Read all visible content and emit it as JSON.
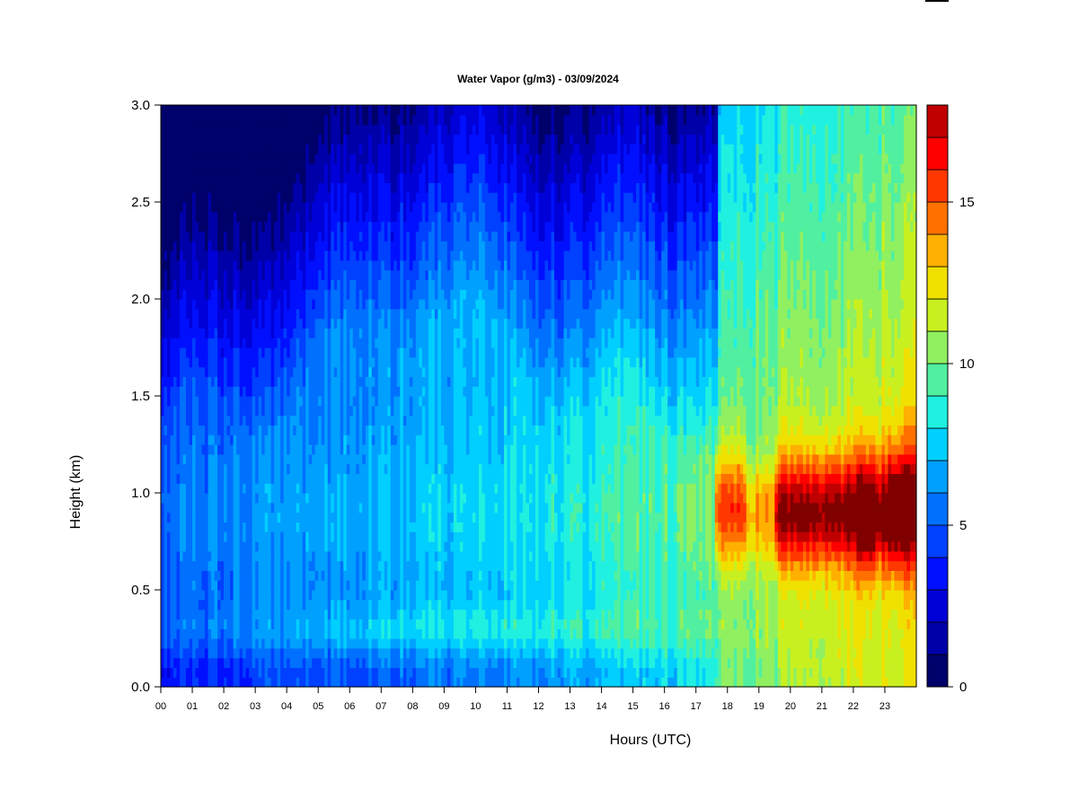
{
  "chart_data": {
    "type": "heatmap",
    "title": "Water Vapor (g/m3) - 03/09/2024",
    "xlabel": "Hours (UTC)",
    "ylabel": "Height (km)",
    "xlim": [
      0,
      24
    ],
    "ylim": [
      0.0,
      3.0
    ],
    "x_ticks": [
      "00",
      "01",
      "02",
      "03",
      "04",
      "05",
      "06",
      "07",
      "08",
      "09",
      "10",
      "11",
      "12",
      "13",
      "14",
      "15",
      "16",
      "17",
      "18",
      "19",
      "20",
      "21",
      "22",
      "23"
    ],
    "y_ticks": [
      "0.0",
      "0.5",
      "1.0",
      "1.5",
      "2.0",
      "2.5",
      "3.0"
    ],
    "colorbar": {
      "range": [
        0,
        18
      ],
      "levels": 18,
      "ticks": [
        {
          "value": 0,
          "label": "0"
        },
        {
          "value": 5,
          "label": "5"
        },
        {
          "value": 10,
          "label": "10"
        },
        {
          "value": 15,
          "label": "15"
        }
      ],
      "colors": [
        "#00006a",
        "#0000a8",
        "#0000d8",
        "#0010ff",
        "#0040ff",
        "#0070ff",
        "#00a0ff",
        "#00cfff",
        "#20f0e0",
        "#50f0a0",
        "#90f060",
        "#c8f020",
        "#f0e000",
        "#ffb000",
        "#ff7000",
        "#ff3800",
        "#ff0000",
        "#c00000",
        "#800000"
      ]
    },
    "grid": false,
    "legend": "colorbar-right"
  }
}
